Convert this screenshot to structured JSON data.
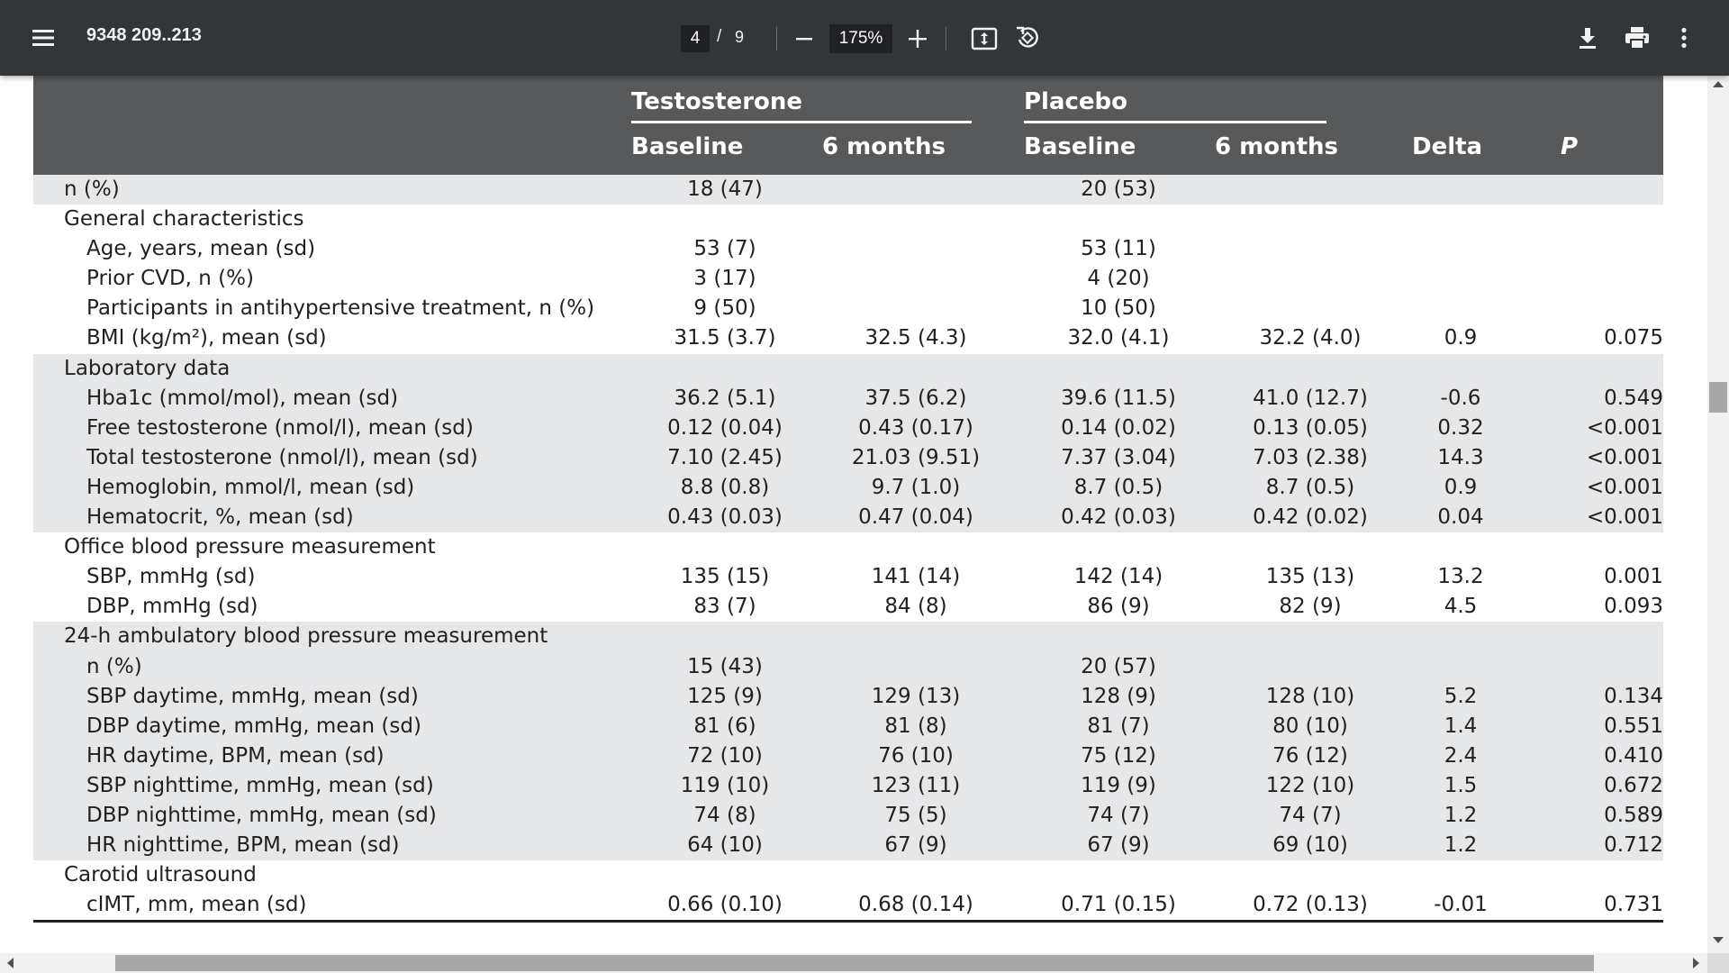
{
  "toolbar": {
    "title": "9348 209..213",
    "current_page": "4",
    "separator": "/",
    "total_pages": "9",
    "zoom": "175%",
    "icons": [
      "menu-icon",
      "zoom-out-icon",
      "zoom-in-icon",
      "fit-page-icon",
      "rotate-icon",
      "download-icon",
      "print-icon",
      "more-vert-icon"
    ]
  },
  "table": {
    "headers": {
      "testosterone": "Testosterone",
      "placebo": "Placebo",
      "baseline": "Baseline",
      "six_months": "6 months",
      "delta": "Delta",
      "p": "P"
    },
    "rows": [
      {
        "label": "n (%)",
        "italic_prefix": "n",
        "indent": false,
        "shade": true,
        "tb": "18 (47)",
        "t6": "",
        "pb": "20 (53)",
        "p6": "",
        "d": "",
        "p": ""
      },
      {
        "label": "General characteristics",
        "indent": false,
        "shade": false,
        "tb": "",
        "t6": "",
        "pb": "",
        "p6": "",
        "d": "",
        "p": ""
      },
      {
        "label": "Age, years, mean (sd)",
        "indent": true,
        "shade": false,
        "tb": "53 (7)",
        "t6": "",
        "pb": "53 (11)",
        "p6": "",
        "d": "",
        "p": ""
      },
      {
        "label": "Prior CVD, n (%)",
        "indent": true,
        "shade": false,
        "tb": "3 (17)",
        "t6": "",
        "pb": "4 (20)",
        "p6": "",
        "d": "",
        "p": ""
      },
      {
        "label": "Participants in antihypertensive treatment, n (%)",
        "indent": true,
        "shade": false,
        "tb": "9 (50)",
        "t6": "",
        "pb": "10 (50)",
        "p6": "",
        "d": "",
        "p": ""
      },
      {
        "label": "BMI (kg/m²), mean (sd)",
        "indent": true,
        "shade": false,
        "tb": "31.5 (3.7)",
        "t6": "32.5 (4.3)",
        "pb": "32.0 (4.1)",
        "p6": "32.2 (4.0)",
        "d": "0.9",
        "p": "0.075"
      },
      {
        "label": "Laboratory data",
        "indent": false,
        "shade": true,
        "tb": "",
        "t6": "",
        "pb": "",
        "p6": "",
        "d": "",
        "p": ""
      },
      {
        "label": "Hba1c (mmol/mol), mean (sd)",
        "indent": true,
        "shade": true,
        "tb": "36.2 (5.1)",
        "t6": "37.5 (6.2)",
        "pb": "39.6 (11.5)",
        "p6": "41.0 (12.7)",
        "d": "-0.6",
        "p": "0.549"
      },
      {
        "label": "Free testosterone (nmol/l), mean (sd)",
        "indent": true,
        "shade": true,
        "tb": "0.12 (0.04)",
        "t6": "0.43 (0.17)",
        "pb": "0.14 (0.02)",
        "p6": "0.13 (0.05)",
        "d": "0.32",
        "p": "<0.001"
      },
      {
        "label": "Total testosterone (nmol/l), mean (sd)",
        "indent": true,
        "shade": true,
        "tb": "7.10 (2.45)",
        "t6": "21.03 (9.51)",
        "pb": "7.37 (3.04)",
        "p6": "7.03 (2.38)",
        "d": "14.3",
        "p": "<0.001"
      },
      {
        "label": "Hemoglobin, mmol/l, mean (sd)",
        "indent": true,
        "shade": true,
        "tb": "8.8 (0.8)",
        "t6": "9.7 (1.0)",
        "pb": "8.7 (0.5)",
        "p6": "8.7 (0.5)",
        "d": "0.9",
        "p": "<0.001"
      },
      {
        "label": "Hematocrit, %, mean (sd)",
        "indent": true,
        "shade": true,
        "tb": "0.43 (0.03)",
        "t6": "0.47 (0.04)",
        "pb": "0.42 (0.03)",
        "p6": "0.42 (0.02)",
        "d": "0.04",
        "p": "<0.001"
      },
      {
        "label": "Office blood pressure measurement",
        "indent": false,
        "shade": false,
        "tb": "",
        "t6": "",
        "pb": "",
        "p6": "",
        "d": "",
        "p": ""
      },
      {
        "label": "SBP, mmHg (sd)",
        "indent": true,
        "shade": false,
        "tb": "135 (15)",
        "t6": "141 (14)",
        "pb": "142 (14)",
        "p6": "135 (13)",
        "d": "13.2",
        "p": "0.001"
      },
      {
        "label": "DBP, mmHg (sd)",
        "indent": true,
        "shade": false,
        "tb": "83 (7)",
        "t6": "84 (8)",
        "pb": "86 (9)",
        "p6": "82 (9)",
        "d": "4.5",
        "p": "0.093"
      },
      {
        "label": "24-h ambulatory blood pressure measurement",
        "indent": false,
        "shade": true,
        "tb": "",
        "t6": "",
        "pb": "",
        "p6": "",
        "d": "",
        "p": ""
      },
      {
        "label": "n (%)",
        "indent": true,
        "shade": true,
        "tb": "15 (43)",
        "t6": "",
        "pb": "20 (57)",
        "p6": "",
        "d": "",
        "p": ""
      },
      {
        "label": "SBP daytime, mmHg, mean (sd)",
        "indent": true,
        "shade": true,
        "tb": "125 (9)",
        "t6": "129 (13)",
        "pb": "128 (9)",
        "p6": "128 (10)",
        "d": "5.2",
        "p": "0.134"
      },
      {
        "label": "DBP daytime, mmHg, mean (sd)",
        "indent": true,
        "shade": true,
        "tb": "81 (6)",
        "t6": "81 (8)",
        "pb": "81 (7)",
        "p6": "80 (10)",
        "d": "1.4",
        "p": "0.551"
      },
      {
        "label": "HR daytime, BPM, mean (sd)",
        "indent": true,
        "shade": true,
        "tb": "72 (10)",
        "t6": "76 (10)",
        "pb": "75 (12)",
        "p6": "76 (12)",
        "d": "2.4",
        "p": "0.410"
      },
      {
        "label": "SBP nighttime, mmHg, mean (sd)",
        "indent": true,
        "shade": true,
        "tb": "119 (10)",
        "t6": "123 (11)",
        "pb": "119 (9)",
        "p6": "122 (10)",
        "d": "1.5",
        "p": "0.672"
      },
      {
        "label": "DBP nighttime, mmHg, mean (sd)",
        "indent": true,
        "shade": true,
        "tb": "74 (8)",
        "t6": "75 (5)",
        "pb": "74 (7)",
        "p6": "74 (7)",
        "d": "1.2",
        "p": "0.589"
      },
      {
        "label": "HR nighttime, BPM, mean (sd)",
        "indent": true,
        "shade": true,
        "tb": "64 (10)",
        "t6": "67 (9)",
        "pb": "67 (9)",
        "p6": "69 (10)",
        "d": "1.2",
        "p": "0.712"
      },
      {
        "label": "Carotid ultrasound",
        "indent": false,
        "shade": false,
        "tb": "",
        "t6": "",
        "pb": "",
        "p6": "",
        "d": "",
        "p": ""
      },
      {
        "label": "cIMT, mm, mean (sd)",
        "indent": true,
        "shade": false,
        "tb": "0.66 (0.10)",
        "t6": "0.68 (0.14)",
        "pb": "0.71 (0.15)",
        "p6": "0.72 (0.13)",
        "d": "-0.01",
        "p": "0.731"
      }
    ]
  }
}
